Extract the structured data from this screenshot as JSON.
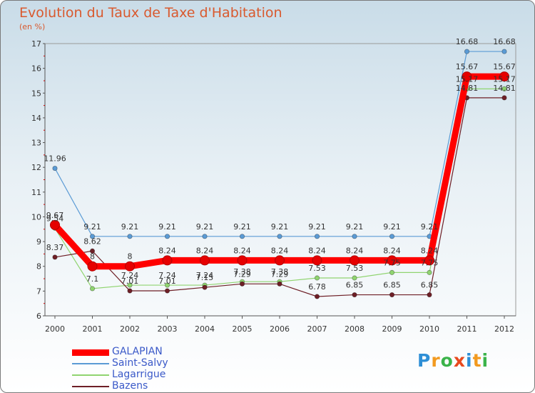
{
  "title": "Evolution du Taux de Taxe d'Habitation",
  "unit_label": "(en %)",
  "brand": {
    "text": "Proxiti",
    "colors": [
      "#2e8fd6",
      "#f29a1f",
      "#3bb34a",
      "#e8491d",
      "#2e8fd6",
      "#f29a1f",
      "#3bb34a"
    ]
  },
  "chart_data": {
    "type": "line",
    "title": "Evolution du Taux de Taxe d'Habitation",
    "ylabel": "(en %)",
    "xlabel": "",
    "ylim": [
      6,
      17
    ],
    "yticks": [
      6,
      7,
      8,
      9,
      10,
      11,
      12,
      13,
      14,
      15,
      16,
      17
    ],
    "categories": [
      "2000",
      "2001",
      "2002",
      "2003",
      "2004",
      "2005",
      "2006",
      "2007",
      "2008",
      "2009",
      "2010",
      "2011",
      "2012"
    ],
    "legend_position": "bottom-left",
    "series": [
      {
        "name": "GALAPIAN",
        "color": "#ff0000",
        "emphasis": true,
        "values": [
          9.67,
          8,
          8,
          8.24,
          8.24,
          8.24,
          8.24,
          8.24,
          8.24,
          8.24,
          8.24,
          15.67,
          15.67
        ],
        "labels": [
          "9.67",
          "8",
          "8",
          "8.24",
          "8.24",
          "8.24",
          "8.24",
          "8.24",
          "8.24",
          "8.24",
          "8.24",
          "15.67",
          "15.67"
        ]
      },
      {
        "name": "Saint-Salvy",
        "color": "#5b9bd5",
        "emphasis": false,
        "values": [
          11.96,
          9.21,
          9.21,
          9.21,
          9.21,
          9.21,
          9.21,
          9.21,
          9.21,
          9.21,
          9.21,
          16.68,
          16.68
        ],
        "labels": [
          "11.96",
          "9.21",
          "9.21",
          "9.21",
          "9.21",
          "9.21",
          "9.21",
          "9.21",
          "9.21",
          "9.21",
          "9.21",
          "16.68",
          "16.68"
        ]
      },
      {
        "name": "Lagarrigue",
        "color": "#90d470",
        "emphasis": false,
        "values": [
          9.54,
          7.1,
          7.24,
          7.24,
          7.24,
          7.38,
          7.38,
          7.53,
          7.53,
          7.75,
          7.75,
          15.17,
          15.17
        ],
        "labels": [
          "9.54",
          "7.1",
          "7.24",
          "7.24",
          "7.24",
          "7.38",
          "7.38",
          "7.53",
          "7.53",
          "7.75",
          "7.75",
          "15.17",
          "15.17"
        ]
      },
      {
        "name": "Bazens",
        "color": "#6e1f26",
        "emphasis": false,
        "values": [
          8.37,
          8.62,
          7.01,
          7.01,
          7.15,
          7.29,
          7.29,
          6.78,
          6.85,
          6.85,
          6.85,
          14.81,
          14.81
        ],
        "labels": [
          "8.37",
          "8.62",
          "7.01",
          "7.01",
          "7.15",
          "7.29",
          "7.29",
          "6.78",
          "6.85",
          "6.85",
          "6.85",
          "14.81",
          "14.81"
        ]
      }
    ]
  }
}
